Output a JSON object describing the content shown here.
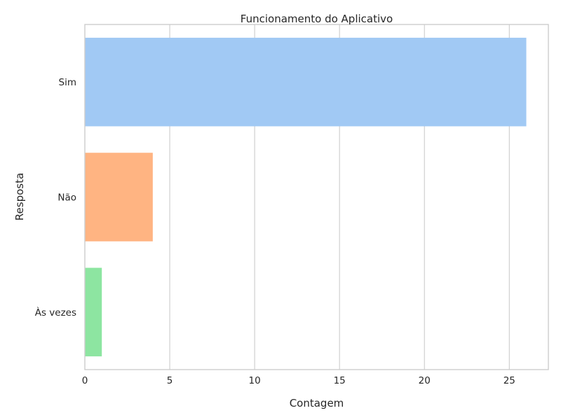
{
  "chart_data": {
    "type": "bar",
    "orientation": "horizontal",
    "title": "Funcionamento do Aplicativo",
    "xlabel": "Contagem",
    "ylabel": "Resposta",
    "categories": [
      "Sim",
      "Não",
      "Às vezes"
    ],
    "values": [
      26,
      4,
      1
    ],
    "xlim": [
      0,
      27.3
    ],
    "xticks": [
      0,
      5,
      10,
      15,
      20,
      25
    ],
    "grid": "vertical",
    "legend": "none",
    "colors": [
      "#a1c9f4",
      "#ffb482",
      "#8de5a1"
    ]
  }
}
